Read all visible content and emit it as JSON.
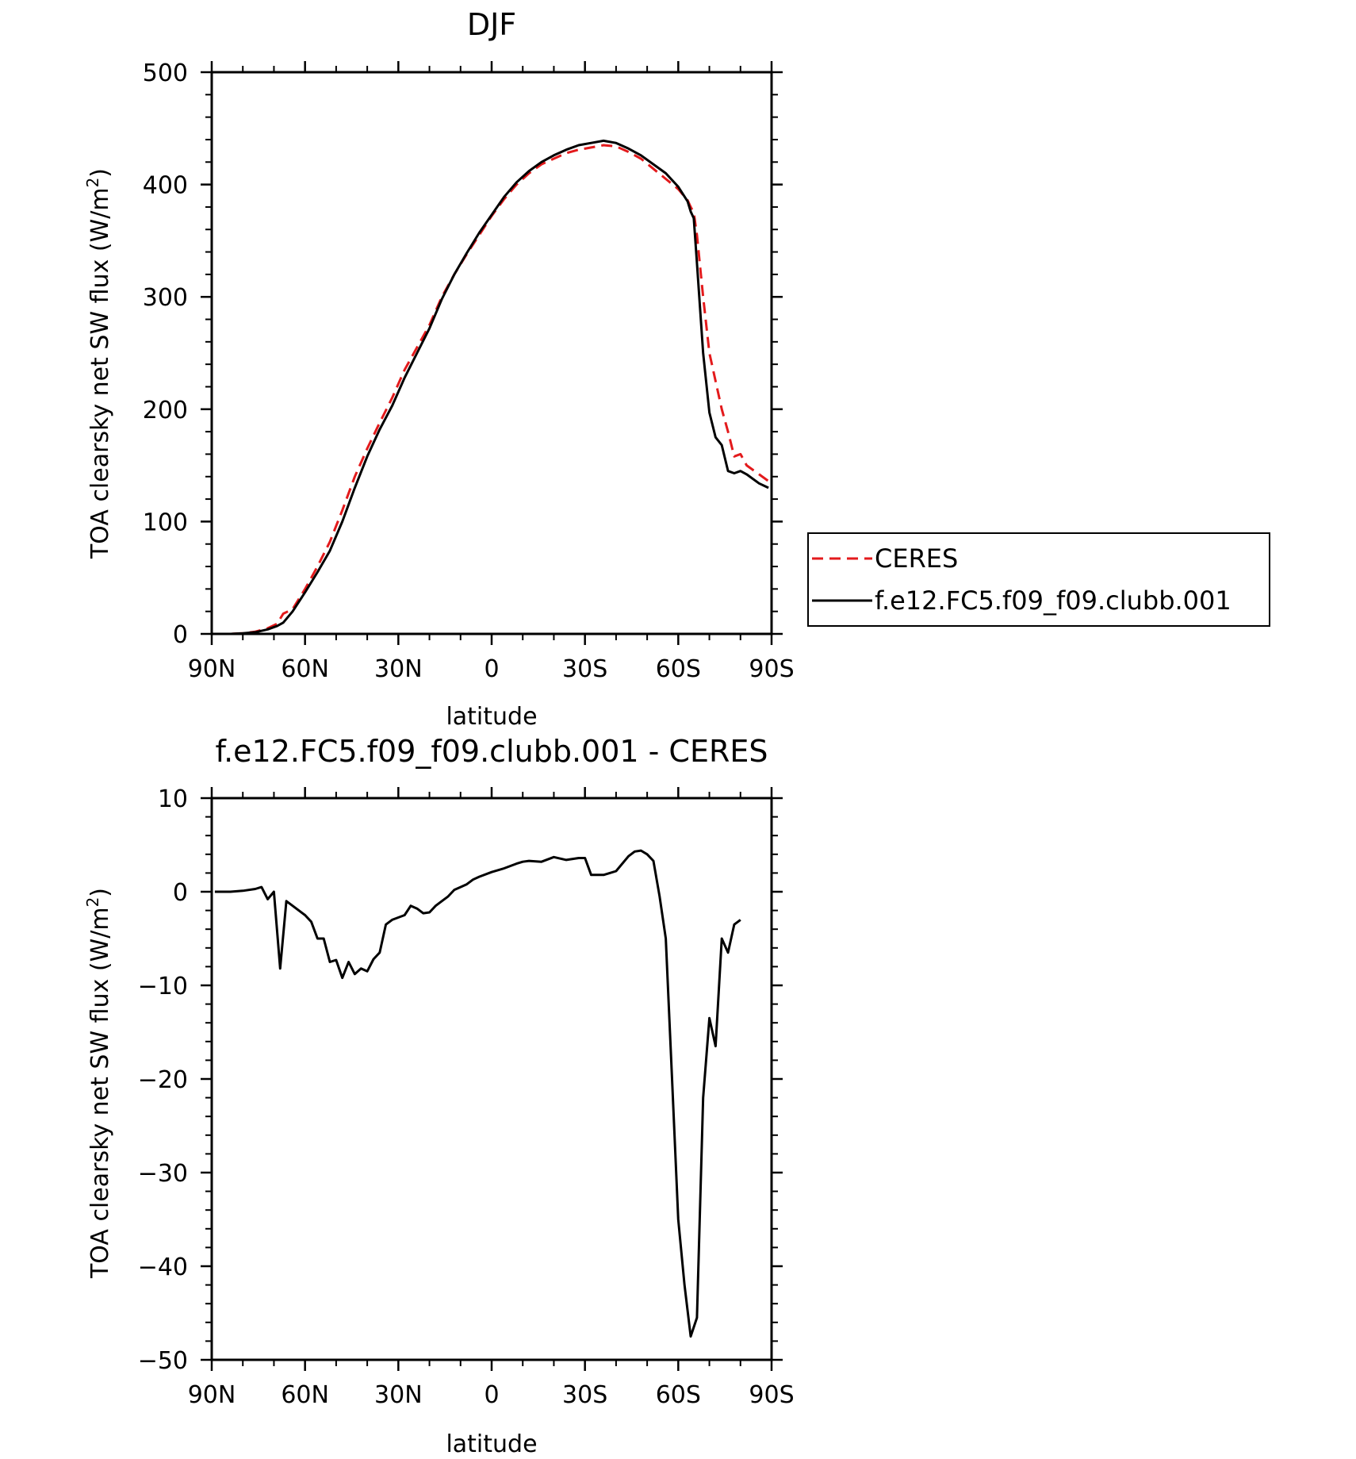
{
  "chart_data": [
    {
      "type": "line",
      "title": "DJF",
      "xlabel": "latitude",
      "ylabel_main": "TOA clearsky net SW flux (W/m",
      "ylabel_sup": "2",
      "ylabel_end": ")",
      "xlim": [
        90,
        -90
      ],
      "ylim": [
        0,
        500
      ],
      "xticks": [
        {
          "v": 90,
          "label": "90N"
        },
        {
          "v": 60,
          "label": "60N"
        },
        {
          "v": 30,
          "label": "30N"
        },
        {
          "v": 0,
          "label": "0"
        },
        {
          "v": -30,
          "label": "30S"
        },
        {
          "v": -60,
          "label": "60S"
        },
        {
          "v": -90,
          "label": "90S"
        }
      ],
      "yticks": [
        {
          "v": 0,
          "label": "0"
        },
        {
          "v": 100,
          "label": "100"
        },
        {
          "v": 200,
          "label": "200"
        },
        {
          "v": 300,
          "label": "300"
        },
        {
          "v": 400,
          "label": "400"
        },
        {
          "v": 500,
          "label": "500"
        }
      ],
      "legend": {
        "position": "right",
        "entries": [
          {
            "name": "CERES",
            "color": "#e31a1c",
            "dash": "14,8"
          },
          {
            "name": "f.e12.FC5.f09_f09.clubb.001",
            "color": "#000000",
            "dash": ""
          }
        ]
      },
      "series": [
        {
          "name": "CERES",
          "color": "#e31a1c",
          "dash": "14,8",
          "points": [
            [
              89,
              0
            ],
            [
              84,
              0
            ],
            [
              80,
              0.5
            ],
            [
              76,
              2
            ],
            [
              72,
              5
            ],
            [
              69,
              9
            ],
            [
              67,
              18
            ],
            [
              64,
              22
            ],
            [
              60,
              40
            ],
            [
              56,
              60
            ],
            [
              52,
              82
            ],
            [
              48,
              110
            ],
            [
              44,
              140
            ],
            [
              40,
              165
            ],
            [
              36,
              188
            ],
            [
              32,
              210
            ],
            [
              28,
              235
            ],
            [
              24,
              255
            ],
            [
              20,
              275
            ],
            [
              16,
              300
            ],
            [
              12,
              320
            ],
            [
              8,
              338
            ],
            [
              4,
              355
            ],
            [
              0,
              372
            ],
            [
              -4,
              387
            ],
            [
              -8,
              400
            ],
            [
              -12,
              410
            ],
            [
              -16,
              418
            ],
            [
              -20,
              423
            ],
            [
              -24,
              428
            ],
            [
              -28,
              431
            ],
            [
              -32,
              433
            ],
            [
              -36,
              435
            ],
            [
              -40,
              434
            ],
            [
              -44,
              429
            ],
            [
              -48,
              423
            ],
            [
              -52,
              414
            ],
            [
              -56,
              405
            ],
            [
              -60,
              396
            ],
            [
              -63,
              386
            ],
            [
              -64,
              380
            ],
            [
              -65,
              375
            ],
            [
              -66,
              355
            ],
            [
              -68,
              300
            ],
            [
              -70,
              250
            ],
            [
              -72,
              225
            ],
            [
              -74,
              200
            ],
            [
              -76,
              180
            ],
            [
              -78,
              158
            ],
            [
              -80,
              160
            ],
            [
              -82,
              150
            ],
            [
              -86,
              142
            ],
            [
              -89,
              136
            ]
          ]
        },
        {
          "name": "f.e12.FC5.f09_f09.clubb.001",
          "color": "#000000",
          "dash": "",
          "points": [
            [
              89,
              0
            ],
            [
              84,
              0
            ],
            [
              80,
              0.5
            ],
            [
              76,
              1.5
            ],
            [
              72,
              4
            ],
            [
              69,
              7
            ],
            [
              67,
              10
            ],
            [
              64,
              20
            ],
            [
              60,
              37
            ],
            [
              56,
              55
            ],
            [
              52,
              74
            ],
            [
              48,
              100
            ],
            [
              44,
              130
            ],
            [
              40,
              158
            ],
            [
              36,
              182
            ],
            [
              32,
              203
            ],
            [
              28,
              228
            ],
            [
              24,
              250
            ],
            [
              20,
              272
            ],
            [
              16,
              298
            ],
            [
              12,
              320
            ],
            [
              8,
              339
            ],
            [
              4,
              357
            ],
            [
              0,
              373
            ],
            [
              -4,
              389
            ],
            [
              -8,
              402
            ],
            [
              -12,
              412
            ],
            [
              -16,
              420
            ],
            [
              -20,
              426
            ],
            [
              -24,
              431
            ],
            [
              -28,
              435
            ],
            [
              -32,
              437
            ],
            [
              -36,
              439
            ],
            [
              -40,
              437
            ],
            [
              -44,
              432
            ],
            [
              -48,
              426
            ],
            [
              -52,
              418
            ],
            [
              -56,
              410
            ],
            [
              -60,
              398
            ],
            [
              -63,
              385
            ],
            [
              -64,
              376
            ],
            [
              -65,
              370
            ],
            [
              -66,
              330
            ],
            [
              -68,
              250
            ],
            [
              -70,
              197
            ],
            [
              -72,
              175
            ],
            [
              -74,
              168
            ],
            [
              -76,
              145
            ],
            [
              -78,
              143
            ],
            [
              -80,
              145
            ],
            [
              -82,
              142
            ],
            [
              -86,
              134
            ],
            [
              -89,
              130
            ]
          ]
        }
      ]
    },
    {
      "type": "line",
      "title": "f.e12.FC5.f09_f09.clubb.001 - CERES",
      "xlabel": "latitude",
      "ylabel_main": "TOA clearsky net SW flux (W/m",
      "ylabel_sup": "2",
      "ylabel_end": ")",
      "xlim": [
        90,
        -90
      ],
      "ylim": [
        -50,
        10
      ],
      "xticks": [
        {
          "v": 90,
          "label": "90N"
        },
        {
          "v": 60,
          "label": "60N"
        },
        {
          "v": 30,
          "label": "30N"
        },
        {
          "v": 0,
          "label": "0"
        },
        {
          "v": -30,
          "label": "30S"
        },
        {
          "v": -60,
          "label": "60S"
        },
        {
          "v": -90,
          "label": "90S"
        }
      ],
      "yticks": [
        {
          "v": 10,
          "label": "10"
        },
        {
          "v": 0,
          "label": "0"
        },
        {
          "v": -10,
          "label": "−10"
        },
        {
          "v": -20,
          "label": "−20"
        },
        {
          "v": -30,
          "label": "−30"
        },
        {
          "v": -40,
          "label": "−40"
        },
        {
          "v": -50,
          "label": "−50"
        }
      ],
      "series": [
        {
          "name": "",
          "color": "#000000",
          "dash": "",
          "points": [
            [
              89,
              0
            ],
            [
              84,
              0
            ],
            [
              80,
              0.1
            ],
            [
              76,
              0.3
            ],
            [
              74,
              0.5
            ],
            [
              72,
              -0.8
            ],
            [
              70,
              0
            ],
            [
              68,
              -8.2
            ],
            [
              66,
              -1
            ],
            [
              64,
              -1.5
            ],
            [
              60,
              -2.5
            ],
            [
              58,
              -3.2
            ],
            [
              56,
              -5
            ],
            [
              54,
              -5
            ],
            [
              52,
              -7.5
            ],
            [
              50,
              -7.3
            ],
            [
              48,
              -9.2
            ],
            [
              46,
              -7.5
            ],
            [
              44,
              -8.8
            ],
            [
              42,
              -8.2
            ],
            [
              40,
              -8.5
            ],
            [
              38,
              -7.2
            ],
            [
              36,
              -6.5
            ],
            [
              34,
              -3.5
            ],
            [
              32,
              -3
            ],
            [
              28,
              -2.5
            ],
            [
              26,
              -1.5
            ],
            [
              24,
              -1.8
            ],
            [
              22,
              -2.3
            ],
            [
              20,
              -2.2
            ],
            [
              18,
              -1.5
            ],
            [
              16,
              -1
            ],
            [
              14,
              -0.5
            ],
            [
              12,
              0.2
            ],
            [
              10,
              0.5
            ],
            [
              8,
              0.8
            ],
            [
              6,
              1.3
            ],
            [
              4,
              1.6
            ],
            [
              0,
              2.1
            ],
            [
              -4,
              2.5
            ],
            [
              -8,
              3
            ],
            [
              -10,
              3.2
            ],
            [
              -12,
              3.3
            ],
            [
              -16,
              3.2
            ],
            [
              -20,
              3.7
            ],
            [
              -24,
              3.4
            ],
            [
              -28,
              3.6
            ],
            [
              -30,
              3.6
            ],
            [
              -32,
              1.8
            ],
            [
              -36,
              1.8
            ],
            [
              -38,
              2.0
            ],
            [
              -40,
              2.2
            ],
            [
              -44,
              3.8
            ],
            [
              -46,
              4.3
            ],
            [
              -48,
              4.4
            ],
            [
              -50,
              4
            ],
            [
              -52,
              3.3
            ],
            [
              -54,
              -0.5
            ],
            [
              -56,
              -5
            ],
            [
              -58,
              -20
            ],
            [
              -60,
              -35
            ],
            [
              -62,
              -42
            ],
            [
              -64,
              -47.5
            ],
            [
              -66,
              -45.5
            ],
            [
              -68,
              -22
            ],
            [
              -70,
              -13.5
            ],
            [
              -72,
              -16.5
            ],
            [
              -74,
              -5
            ],
            [
              -76,
              -6.5
            ],
            [
              -78,
              -3.5
            ],
            [
              -80,
              -3
            ]
          ]
        }
      ]
    }
  ]
}
